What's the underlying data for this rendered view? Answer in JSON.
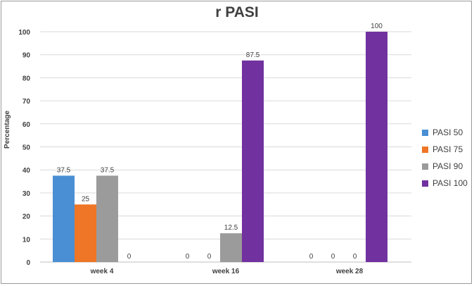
{
  "chart_data": {
    "type": "bar",
    "title": "r PASI",
    "xlabel": "",
    "ylabel": "Percentage",
    "ylim": [
      0,
      100
    ],
    "yticks": [
      0,
      10,
      20,
      30,
      40,
      50,
      60,
      70,
      80,
      90,
      100
    ],
    "categories": [
      "week 4",
      "week 16",
      "week 28"
    ],
    "series": [
      {
        "name": "PASI 50",
        "color": "#4a8fd3",
        "values": [
          37.5,
          0,
          0
        ]
      },
      {
        "name": "PASI 75",
        "color": "#ee7626",
        "values": [
          25,
          0,
          0
        ]
      },
      {
        "name": "PASI 90",
        "color": "#9b9b9b",
        "values": [
          37.5,
          12.5,
          0
        ]
      },
      {
        "name": "PASI 100",
        "color": "#7132a0",
        "values": [
          0,
          87.5,
          100
        ]
      }
    ],
    "grid": true,
    "legend_position": "right"
  }
}
